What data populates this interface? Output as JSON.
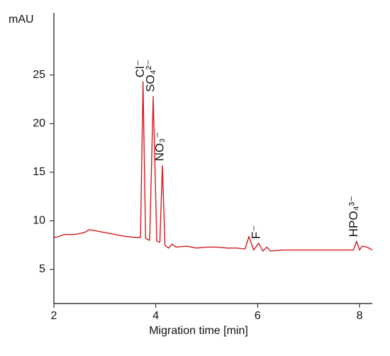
{
  "chart_data": {
    "type": "line",
    "y_label": "mAU",
    "x_label": "Migration time [min]",
    "xlim": [
      2,
      8.25
    ],
    "xticks": [
      2,
      4,
      6,
      8
    ],
    "ylim": [
      1.5,
      31.4
    ],
    "yticks": [
      5,
      10,
      15,
      20,
      25
    ],
    "series": [
      {
        "color": "#d7191f",
        "x": [
          2.0,
          2.1,
          2.2,
          2.4,
          2.6,
          2.7,
          2.8,
          3.0,
          3.2,
          3.4,
          3.6,
          3.7,
          3.75,
          3.8,
          3.88,
          3.95,
          4.02,
          4.08,
          4.13,
          4.18,
          4.25,
          4.32,
          4.4,
          4.6,
          4.8,
          5.0,
          5.2,
          5.4,
          5.6,
          5.75,
          5.83,
          5.92,
          6.02,
          6.1,
          6.18,
          6.25,
          6.5,
          7.0,
          7.5,
          7.88,
          7.94,
          8.0,
          8.05,
          8.15,
          8.25
        ],
        "values": [
          8.3,
          8.4,
          8.6,
          8.6,
          8.8,
          9.1,
          9.0,
          8.8,
          8.6,
          8.4,
          8.3,
          8.3,
          24.3,
          8.2,
          8.0,
          22.8,
          7.9,
          7.8,
          15.7,
          7.5,
          7.2,
          7.6,
          7.3,
          7.4,
          7.2,
          7.3,
          7.3,
          7.2,
          7.2,
          7.1,
          8.4,
          7.0,
          7.7,
          6.9,
          7.3,
          6.9,
          7.0,
          7.0,
          7.0,
          7.0,
          7.9,
          7.0,
          7.4,
          7.3,
          7.0
        ]
      }
    ],
    "annotations": [
      {
        "text": "Cl⁻",
        "x": 3.75,
        "y": 24.3
      },
      {
        "text": "SO₄²⁻",
        "x": 3.95,
        "y": 22.8
      },
      {
        "text": "NO₃⁻",
        "x": 4.13,
        "y": 15.7
      },
      {
        "text": "F⁻",
        "x": 6.02,
        "y": 7.7
      },
      {
        "text": "HPO₄³⁻",
        "x": 7.94,
        "y": 7.9
      }
    ]
  }
}
